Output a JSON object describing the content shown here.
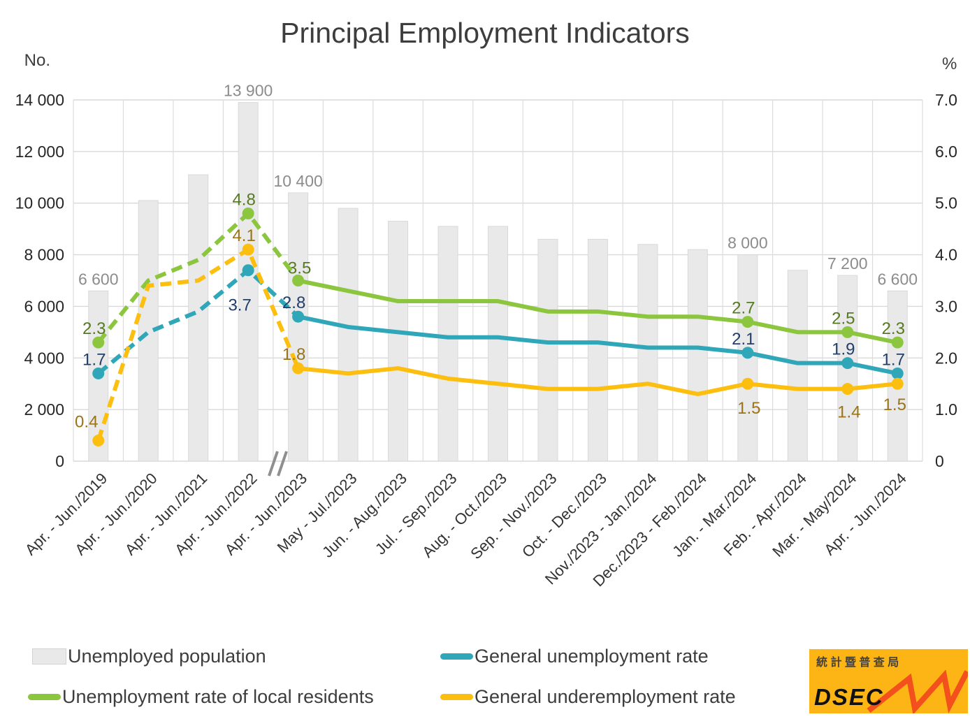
{
  "title": "Principal Employment Indicators",
  "axes": {
    "left": {
      "unit": "No.",
      "ticks": [
        "14 000",
        "12 000",
        "10 000",
        "8 000",
        "6 000",
        "4 000",
        "2 000",
        "0"
      ]
    },
    "right": {
      "unit": "%",
      "ticks": [
        "7.0",
        "6.0",
        "5.0",
        "4.0",
        "3.0",
        "2.0",
        "1.0",
        "0"
      ]
    }
  },
  "chart_data": {
    "type": "combo: bar (left axis) + 3 lines (right axis)",
    "title": "Principal Employment Indicators",
    "categories": [
      "Apr. - Jun./2019",
      "Apr. - Jun./2020",
      "Apr. - Jun./2021",
      "Apr. - Jun./2022",
      "Apr. - Jun./2023",
      "May - Jul./2023",
      "Jun. - Aug./2023",
      "Jul. - Sep./2023",
      "Aug. - Oct./2023",
      "Sep. - Nov./2023",
      "Oct. - Dec./2023",
      "Nov./2023 - Jan./2024",
      "Dec./2023 - Feb./2024",
      "Jan. - Mar./2024",
      "Feb. - Apr./2024",
      "Mar. - May/2024",
      "Apr. - Jun./2024"
    ],
    "left_axis": {
      "label": "No.",
      "range": [
        0,
        14000
      ],
      "tick_step": 2000
    },
    "right_axis": {
      "label": "%",
      "range": [
        0,
        7.0
      ],
      "tick_step": 1.0
    },
    "gridlines": "horizontal + vertical, light gray",
    "axis_break_between": [
      "Apr. - Jun./2022",
      "Apr. - Jun./2023"
    ],
    "dashed_line_through_index": 4,
    "bars": {
      "name": "Unemployed population",
      "axis": "left",
      "color": "#e9e9e9",
      "border_color": "#d9d9d9",
      "values": [
        6600,
        10100,
        11100,
        13900,
        10400,
        9800,
        9300,
        9100,
        9100,
        8600,
        8600,
        8400,
        8200,
        8000,
        7400,
        7200,
        6600
      ],
      "shown_labels": {
        "0": "6 600",
        "3": "13 900",
        "4": "10 400",
        "13": "8 000",
        "15": "7 200",
        "16": "6 600"
      },
      "label_color": "#8c8c8c"
    },
    "lines": [
      {
        "name": "General unemployment rate",
        "axis": "right",
        "color": "#2fa7b9",
        "label_color": "#22406b",
        "values": [
          1.7,
          2.5,
          2.9,
          3.7,
          2.8,
          2.6,
          2.5,
          2.4,
          2.4,
          2.3,
          2.3,
          2.2,
          2.2,
          2.1,
          1.9,
          1.9,
          1.7
        ],
        "shown_labels": {
          "0": "1.7",
          "3": "3.7",
          "4": "2.8",
          "13": "2.1",
          "15": "1.9",
          "16": "1.7"
        }
      },
      {
        "name": "Unemployment rate of local residents",
        "axis": "right",
        "color": "#8cc63f",
        "label_color": "#567a22",
        "values": [
          2.3,
          3.5,
          3.9,
          4.8,
          3.5,
          3.3,
          3.1,
          3.1,
          3.1,
          2.9,
          2.9,
          2.8,
          2.8,
          2.7,
          2.5,
          2.5,
          2.3
        ],
        "shown_labels": {
          "0": "2.3",
          "3": "4.8",
          "4": "3.5",
          "13": "2.7",
          "15": "2.5",
          "16": "2.3"
        }
      },
      {
        "name": "General underemployment rate",
        "axis": "right",
        "color": "#fcbf10",
        "label_color": "#9a7416",
        "values": [
          0.4,
          3.4,
          3.5,
          4.1,
          1.8,
          1.7,
          1.8,
          1.6,
          1.5,
          1.4,
          1.4,
          1.5,
          1.3,
          1.5,
          1.4,
          1.4,
          1.5
        ],
        "shown_labels": {
          "0": "0.4",
          "3": "4.1",
          "4": "1.8",
          "13": "1.5",
          "15": "1.4",
          "16": "1.5"
        }
      }
    ],
    "legend_position": "bottom"
  },
  "legend": {
    "items": [
      {
        "label": "Unemployed population",
        "swatch": "bar",
        "color": "#e9e9e9"
      },
      {
        "label": "General unemployment rate",
        "swatch": "line",
        "color": "#2fa7b9"
      },
      {
        "label": "Unemployment rate of local residents",
        "swatch": "line",
        "color": "#8cc63f"
      },
      {
        "label": "General underemployment rate",
        "swatch": "line",
        "color": "#fcbf10"
      }
    ]
  },
  "logo": {
    "cn_text": "統 計 暨 普 查 局",
    "en_text": "DSEC",
    "bg_color": "#fdb515",
    "zigzag_color": "#f3501e"
  }
}
